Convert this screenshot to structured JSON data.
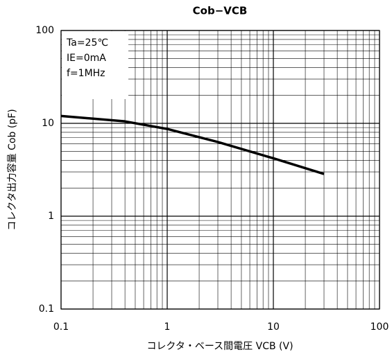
{
  "chart_data": {
    "type": "line",
    "title": "Cob−VCB",
    "xlabel": "コレクタ・ベース間電圧 VCB (V)",
    "ylabel": "コレクタ出力容量 Cob (pF)",
    "annotations": [
      "Ta=25℃",
      "IE=0mA",
      "f=1MHz"
    ],
    "x": [
      0.1,
      0.4,
      1,
      3,
      10,
      30
    ],
    "series": [
      {
        "name": "Cob",
        "color": "#000000",
        "values": [
          12,
          10.5,
          8.7,
          6.3,
          4.2,
          2.85
        ]
      }
    ],
    "xscale": "log",
    "yscale": "log",
    "xlim": [
      0.1,
      100
    ],
    "ylim": [
      0.1,
      100
    ],
    "xticks": [
      0.1,
      1,
      10,
      100
    ],
    "yticks": [
      0.1,
      1,
      10,
      100
    ],
    "xticks_minor": [
      0.2,
      0.3,
      0.4,
      0.5,
      0.6,
      0.7,
      0.8,
      0.9,
      2,
      3,
      4,
      5,
      6,
      7,
      8,
      9,
      20,
      30,
      40,
      50,
      60,
      70,
      80,
      90
    ],
    "yticks_minor": [
      0.2,
      0.3,
      0.4,
      0.5,
      0.6,
      0.7,
      0.8,
      0.9,
      2,
      3,
      4,
      5,
      6,
      7,
      8,
      9,
      20,
      30,
      40,
      50,
      60,
      70,
      80,
      90
    ],
    "grid": true
  }
}
